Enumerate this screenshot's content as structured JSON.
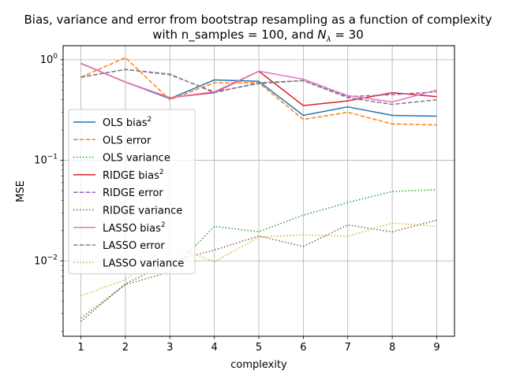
{
  "chart_data": {
    "type": "line",
    "title_line1": "Bias, variance and error from bootstrap resampling as a function of complexity",
    "title_line2_prefix": "with n_samples = 100, and ",
    "title_symbol_base": "N",
    "title_symbol_sub": "λ",
    "title_line2_suffix": " = 30",
    "xlabel": "complexity",
    "ylabel": "MSE",
    "yscale": "log",
    "x": [
      1,
      2,
      3,
      4,
      5,
      6,
      7,
      8,
      9
    ],
    "xticks": [
      "1",
      "2",
      "3",
      "4",
      "5",
      "6",
      "7",
      "8",
      "9"
    ],
    "xlim": [
      0.6,
      9.4
    ],
    "ylim": [
      0.00178,
      1.38
    ],
    "yticks": [
      {
        "value": 0.01,
        "base": "10",
        "exp": "−2"
      },
      {
        "value": 0.1,
        "base": "10",
        "exp": "−1"
      },
      {
        "value": 1,
        "base": "10",
        "exp": "0"
      }
    ],
    "grid": true,
    "legend_position": "center-left",
    "series": [
      {
        "name": "OLS bias",
        "sup": "2",
        "color": "#1f77b4",
        "dash": "solid",
        "values": [
          0.92,
          0.6,
          0.41,
          0.63,
          0.61,
          0.28,
          0.34,
          0.28,
          0.275
        ]
      },
      {
        "name": "OLS error",
        "sup": "",
        "color": "#ff7f0e",
        "dash": "dashed",
        "values": [
          0.67,
          1.05,
          0.4,
          0.59,
          0.59,
          0.255,
          0.3,
          0.23,
          0.225
        ]
      },
      {
        "name": "OLS variance",
        "sup": "",
        "color": "#2ca02c",
        "dash": "dotted",
        "values": [
          0.0027,
          0.0058,
          0.0078,
          0.022,
          0.0195,
          0.0285,
          0.038,
          0.049,
          0.051
        ]
      },
      {
        "name": "RIDGE bias",
        "sup": "2",
        "color": "#d62728",
        "dash": "solid",
        "values": [
          0.92,
          0.6,
          0.42,
          0.47,
          0.77,
          0.35,
          0.39,
          0.47,
          0.43
        ]
      },
      {
        "name": "RIDGE error",
        "sup": "",
        "color": "#9467bd",
        "dash": "dashed",
        "values": [
          0.67,
          0.8,
          0.71,
          0.48,
          0.58,
          0.62,
          0.43,
          0.45,
          0.48
        ]
      },
      {
        "name": "RIDGE variance",
        "sup": "",
        "color": "#8c564b",
        "dash": "dotted",
        "values": [
          0.0025,
          0.0059,
          0.0098,
          0.0128,
          0.0177,
          0.0139,
          0.0228,
          0.0194,
          0.0255
        ]
      },
      {
        "name": "LASSO bias",
        "sup": "2",
        "color": "#e377c2",
        "dash": "solid",
        "values": [
          0.92,
          0.6,
          0.42,
          0.48,
          0.77,
          0.64,
          0.44,
          0.38,
          0.5
        ]
      },
      {
        "name": "LASSO error",
        "sup": "",
        "color": "#7f7f7f",
        "dash": "dashed",
        "values": [
          0.67,
          0.8,
          0.72,
          0.47,
          0.59,
          0.62,
          0.42,
          0.36,
          0.4
        ]
      },
      {
        "name": "LASSO variance",
        "sup": "",
        "color": "#bcbd22",
        "dash": "dotted",
        "values": [
          0.0045,
          0.0065,
          0.0145,
          0.0098,
          0.0172,
          0.0182,
          0.0175,
          0.0238,
          0.022
        ]
      }
    ]
  }
}
